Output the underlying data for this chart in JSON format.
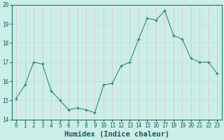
{
  "x": [
    0,
    1,
    2,
    3,
    4,
    5,
    6,
    7,
    8,
    9,
    10,
    11,
    12,
    13,
    14,
    15,
    16,
    17,
    18,
    19,
    20,
    21,
    22,
    23
  ],
  "y": [
    15.1,
    15.8,
    17.0,
    16.9,
    15.5,
    15.0,
    14.5,
    14.6,
    14.5,
    14.35,
    15.8,
    15.9,
    16.8,
    17.0,
    18.2,
    19.3,
    19.2,
    19.7,
    18.4,
    18.2,
    17.2,
    17.0,
    17.0,
    16.4
  ],
  "line_color": "#2d8b78",
  "marker_color": "#2d8b78",
  "bg_color": "#cceee8",
  "grid_major_color": "#f0c8c8",
  "grid_minor_color": "#c8e8e8",
  "xlabel": "Humidex (Indice chaleur)",
  "ylabel": "",
  "xlim": [
    -0.5,
    23.5
  ],
  "ylim": [
    14,
    20
  ],
  "yticks": [
    14,
    15,
    16,
    17,
    18,
    19,
    20
  ],
  "xticks": [
    0,
    1,
    2,
    3,
    4,
    5,
    6,
    7,
    8,
    9,
    10,
    11,
    12,
    13,
    14,
    15,
    16,
    17,
    18,
    19,
    20,
    21,
    22,
    23
  ],
  "tick_fontsize": 5.5,
  "xlabel_fontsize": 7.5,
  "xlabel_bold": true
}
